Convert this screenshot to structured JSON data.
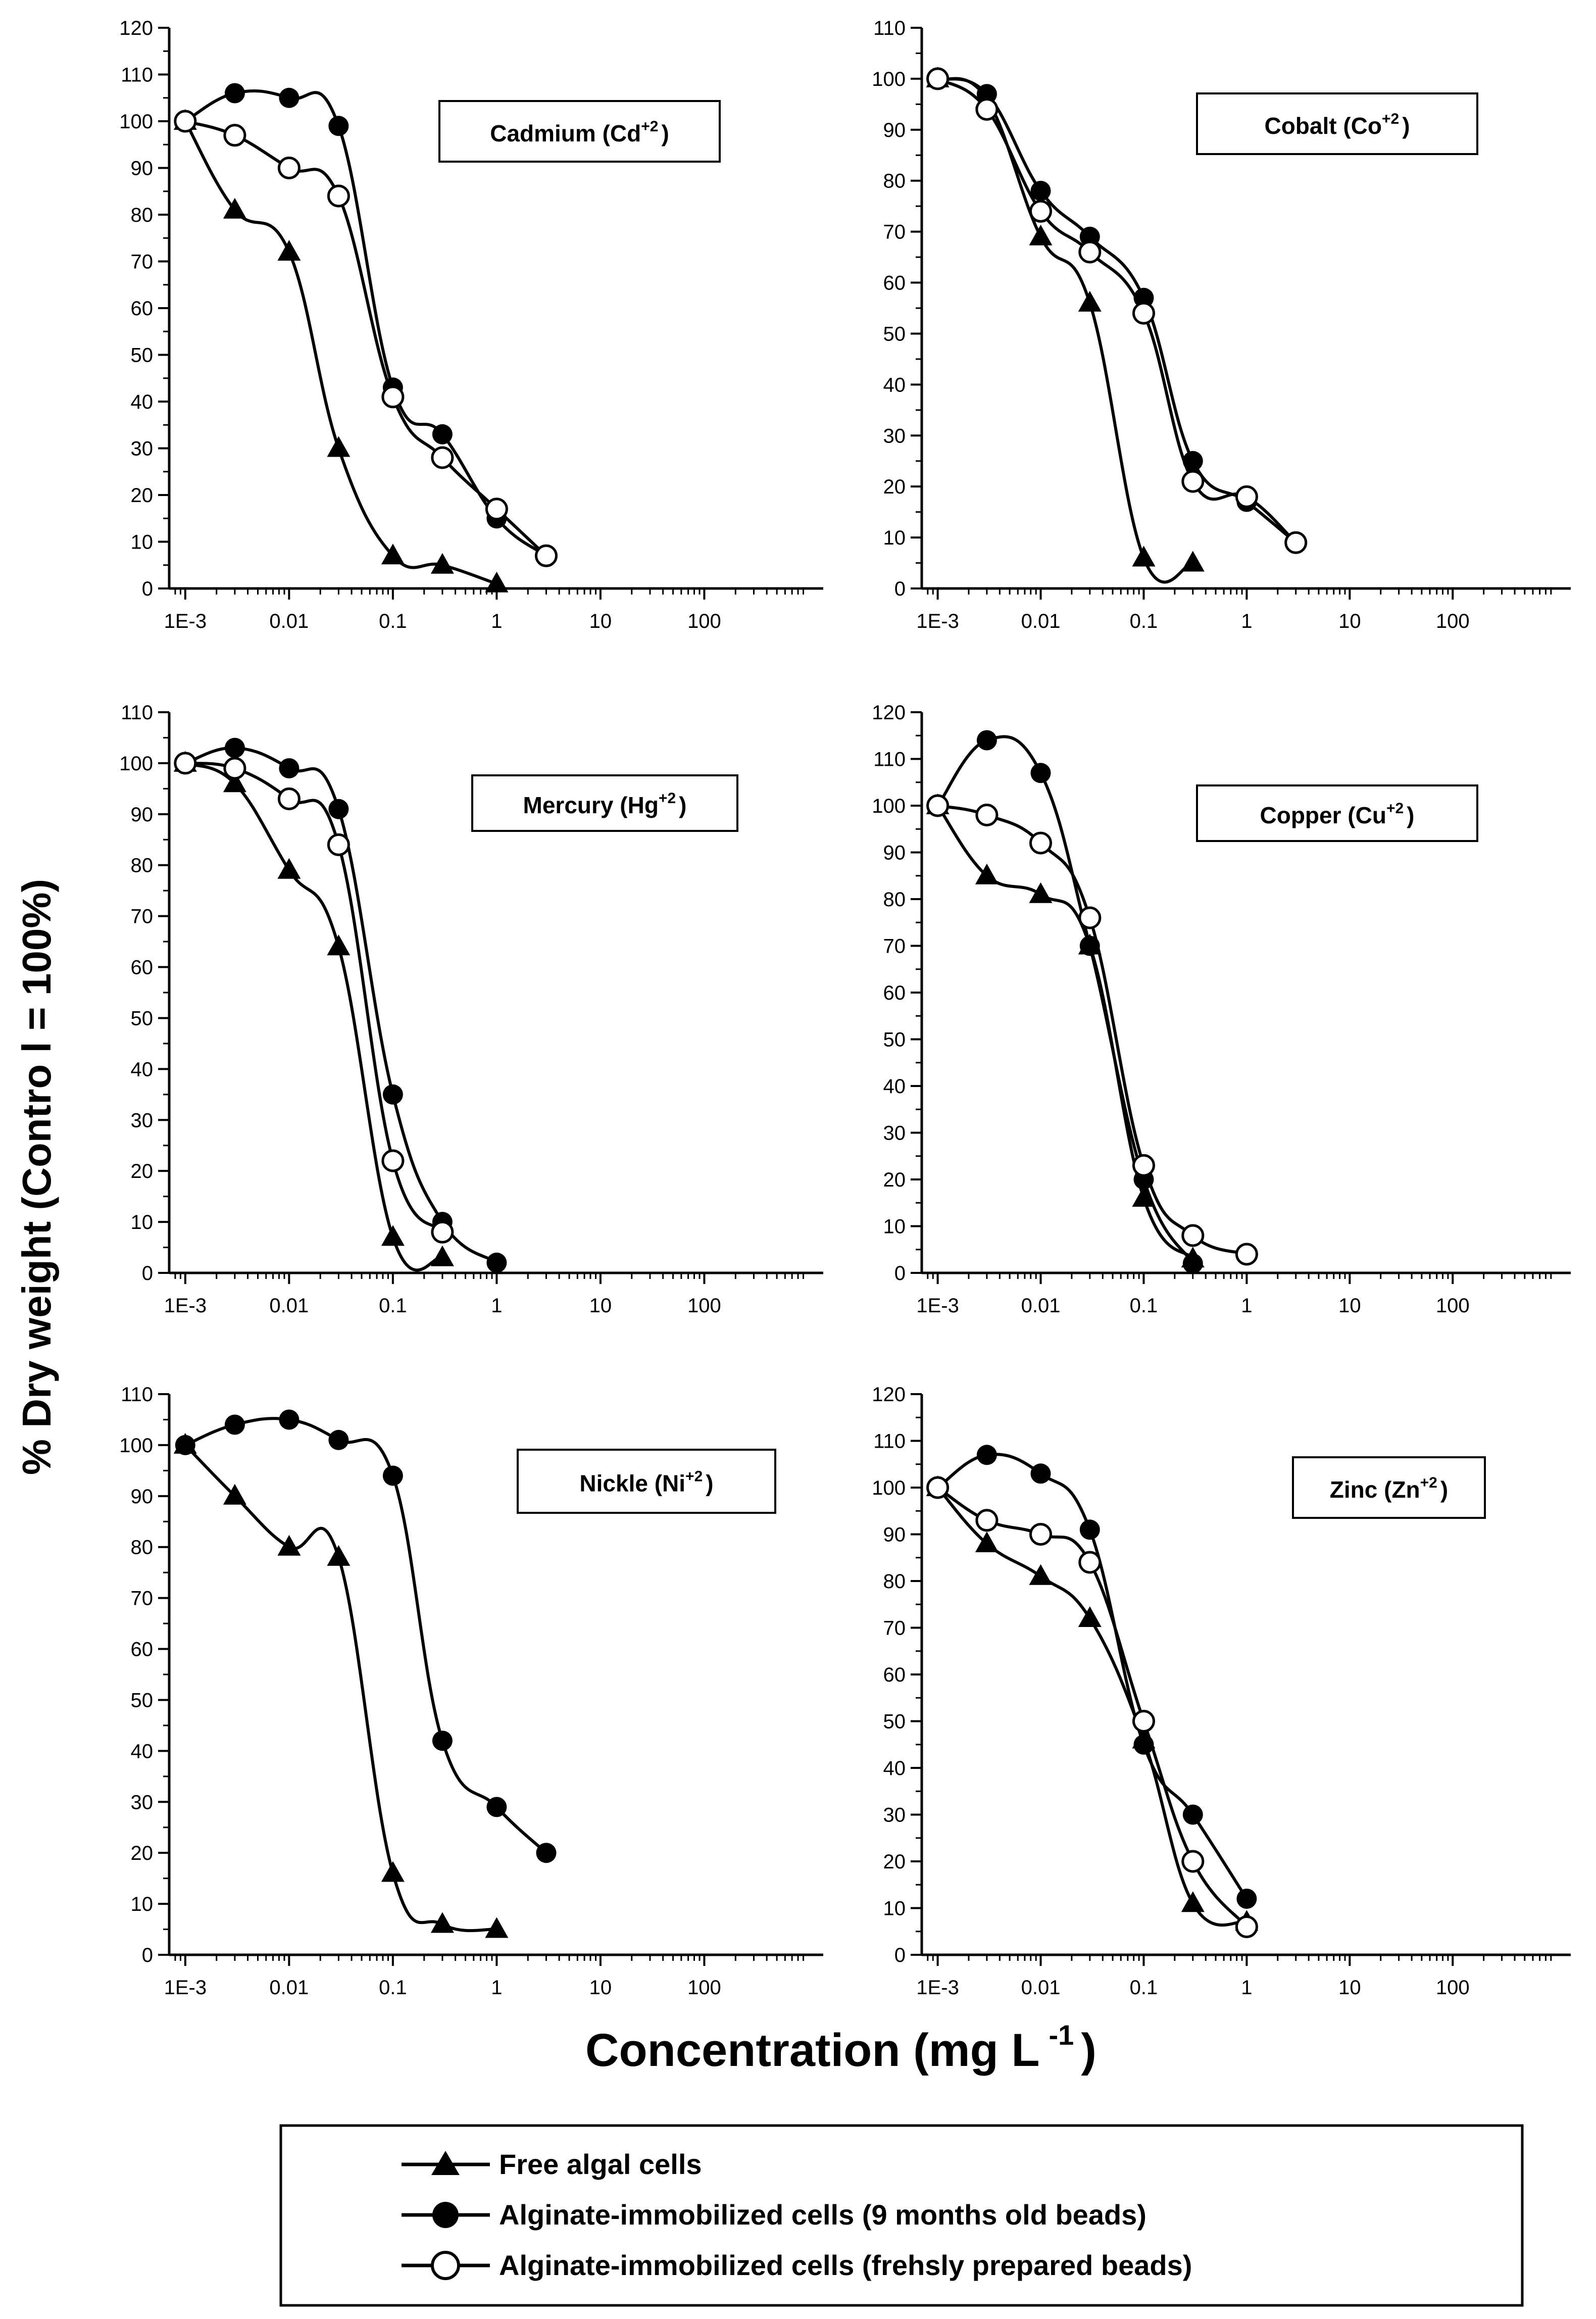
{
  "figure": {
    "ylabel": "% Dry weight (Contro l = 100%)",
    "xlabel_main": "Concentration (mg L",
    "xlabel_sup": "-1",
    "xlabel_end": ")"
  },
  "legend": [
    {
      "name": "Free algal cells",
      "marker": "filled-triangle"
    },
    {
      "name": "Alginate-immobilized cells (9 months old beads)",
      "marker": "filled-circle"
    },
    {
      "name": "Alginate-immobilized cells (frehsly prepared beads)",
      "marker": "open-circle"
    }
  ],
  "chart_data": [
    {
      "type": "line",
      "title": "Cadmium (Cd",
      "title_sup": "+2",
      "title_end": ")",
      "xscale": "log",
      "xlim": [
        0.0007,
        1400
      ],
      "xticks": [
        0.001,
        0.01,
        0.1,
        1,
        10,
        100
      ],
      "xtick_labels": [
        "1E-3",
        "0.01",
        "0.1",
        "1",
        "10",
        "100"
      ],
      "ylim": [
        0,
        120
      ],
      "yticks": [
        0,
        10,
        20,
        30,
        40,
        50,
        60,
        70,
        80,
        90,
        100,
        110,
        120
      ],
      "series": [
        {
          "name": "Free algal cells",
          "x": [
            0.001,
            0.003,
            0.01,
            0.03,
            0.1,
            0.3,
            1
          ],
          "y": [
            100,
            81,
            72,
            30,
            7,
            5,
            1
          ]
        },
        {
          "name": "Alginate-immobilized cells (9 months old beads)",
          "x": [
            0.001,
            0.003,
            0.01,
            0.03,
            0.1,
            0.3,
            1,
            3
          ],
          "y": [
            100,
            106,
            105,
            99,
            43,
            33,
            15,
            7
          ]
        },
        {
          "name": "Alginate-immobilized cells (frehsly prepared beads)",
          "x": [
            0.001,
            0.003,
            0.01,
            0.03,
            0.1,
            0.3,
            1,
            3
          ],
          "y": [
            100,
            97,
            90,
            84,
            41,
            28,
            17,
            7
          ]
        }
      ]
    },
    {
      "type": "line",
      "title": "Cobalt (Co",
      "title_sup": "+2",
      "title_end": ")",
      "xscale": "log",
      "xlim": [
        0.0007,
        1400
      ],
      "xticks": [
        0.001,
        0.01,
        0.1,
        1,
        10,
        100
      ],
      "xtick_labels": [
        "1E-3",
        "0.01",
        "0.1",
        "1",
        "10",
        "100"
      ],
      "ylim": [
        0,
        110
      ],
      "yticks": [
        0,
        10,
        20,
        30,
        40,
        50,
        60,
        70,
        80,
        90,
        100,
        110
      ],
      "series": [
        {
          "name": "Free algal cells",
          "x": [
            0.001,
            0.003,
            0.01,
            0.03,
            0.1,
            0.3
          ],
          "y": [
            100,
            96,
            69,
            56,
            6,
            5
          ]
        },
        {
          "name": "Alginate-immobilized cells (9 months old beads)",
          "x": [
            0.001,
            0.003,
            0.01,
            0.03,
            0.1,
            0.3,
            1,
            3
          ],
          "y": [
            100,
            97,
            78,
            69,
            57,
            25,
            17,
            9
          ]
        },
        {
          "name": "Alginate-immobilized cells (frehsly prepared beads)",
          "x": [
            0.001,
            0.003,
            0.01,
            0.03,
            0.1,
            0.3,
            1,
            3
          ],
          "y": [
            100,
            94,
            74,
            66,
            54,
            21,
            18,
            9
          ]
        }
      ]
    },
    {
      "type": "line",
      "title": "Mercury (Hg",
      "title_sup": "+2",
      "title_end": ")",
      "xscale": "log",
      "xlim": [
        0.0007,
        1400
      ],
      "xticks": [
        0.001,
        0.01,
        0.1,
        1,
        10,
        100
      ],
      "xtick_labels": [
        "1E-3",
        "0.01",
        "0.1",
        "1",
        "10",
        "100"
      ],
      "ylim": [
        0,
        110
      ],
      "yticks": [
        0,
        10,
        20,
        30,
        40,
        50,
        60,
        70,
        80,
        90,
        100,
        110
      ],
      "series": [
        {
          "name": "Free algal cells",
          "x": [
            0.001,
            0.003,
            0.01,
            0.03,
            0.1,
            0.3
          ],
          "y": [
            100,
            96,
            79,
            64,
            7,
            3
          ]
        },
        {
          "name": "Alginate-immobilized cells (9 months old beads)",
          "x": [
            0.001,
            0.003,
            0.01,
            0.03,
            0.1,
            0.3,
            1
          ],
          "y": [
            100,
            103,
            99,
            91,
            35,
            10,
            2
          ]
        },
        {
          "name": "Alginate-immobilized cells (frehsly prepared beads)",
          "x": [
            0.001,
            0.003,
            0.01,
            0.03,
            0.1,
            0.3
          ],
          "y": [
            100,
            99,
            93,
            84,
            22,
            8
          ]
        }
      ]
    },
    {
      "type": "line",
      "title": "Copper (Cu",
      "title_sup": "+2",
      "title_end": ")",
      "xscale": "log",
      "xlim": [
        0.0007,
        1400
      ],
      "xticks": [
        0.001,
        0.01,
        0.1,
        1,
        10,
        100
      ],
      "xtick_labels": [
        "1E-3",
        "0.01",
        "0.1",
        "1",
        "10",
        "100"
      ],
      "ylim": [
        0,
        120
      ],
      "yticks": [
        0,
        10,
        20,
        30,
        40,
        50,
        60,
        70,
        80,
        90,
        100,
        110,
        120
      ],
      "series": [
        {
          "name": "Free algal cells",
          "x": [
            0.001,
            0.003,
            0.01,
            0.03,
            0.1,
            0.3
          ],
          "y": [
            100,
            85,
            81,
            70,
            16,
            3
          ]
        },
        {
          "name": "Alginate-immobilized cells (9 months old beads)",
          "x": [
            0.001,
            0.003,
            0.01,
            0.03,
            0.1,
            0.3
          ],
          "y": [
            100,
            114,
            107,
            70,
            20,
            2
          ]
        },
        {
          "name": "Alginate-immobilized cells (frehsly prepared beads)",
          "x": [
            0.001,
            0.003,
            0.01,
            0.03,
            0.1,
            0.3,
            1
          ],
          "y": [
            100,
            98,
            92,
            76,
            23,
            8,
            4
          ]
        }
      ]
    },
    {
      "type": "line",
      "title": "Nickle (Ni",
      "title_sup": "+2",
      "title_end": ")",
      "xscale": "log",
      "xlim": [
        0.0007,
        1400
      ],
      "xticks": [
        0.001,
        0.01,
        0.1,
        1,
        10,
        100
      ],
      "xtick_labels": [
        "1E-3",
        "0.01",
        "0.1",
        "1",
        "10",
        "100"
      ],
      "ylim": [
        0,
        110
      ],
      "yticks": [
        0,
        10,
        20,
        30,
        40,
        50,
        60,
        70,
        80,
        90,
        100,
        110
      ],
      "series": [
        {
          "name": "Free algal cells",
          "x": [
            0.001,
            0.003,
            0.01,
            0.03,
            0.1,
            0.3,
            1
          ],
          "y": [
            100,
            90,
            80,
            78,
            16,
            6,
            5
          ]
        },
        {
          "name": "Alginate-immobilized cells (9 months old beads)",
          "x": [
            0.001,
            0.003,
            0.01,
            0.03,
            0.1,
            0.3,
            1,
            3
          ],
          "y": [
            100,
            104,
            105,
            101,
            94,
            42,
            29,
            20
          ]
        }
      ]
    },
    {
      "type": "line",
      "title": "Zinc (Zn",
      "title_sup": "+2",
      "title_end": ")",
      "xscale": "log",
      "xlim": [
        0.0007,
        1400
      ],
      "xticks": [
        0.001,
        0.01,
        0.1,
        1,
        10,
        100
      ],
      "xtick_labels": [
        "1E-3",
        "0.01",
        "0.1",
        "1",
        "10",
        "100"
      ],
      "ylim": [
        0,
        120
      ],
      "yticks": [
        0,
        10,
        20,
        30,
        40,
        50,
        60,
        70,
        80,
        90,
        100,
        110,
        120
      ],
      "series": [
        {
          "name": "Free algal cells",
          "x": [
            0.001,
            0.003,
            0.01,
            0.03,
            0.1,
            0.3,
            1
          ],
          "y": [
            100,
            88,
            81,
            72,
            46,
            11,
            7
          ]
        },
        {
          "name": "Alginate-immobilized cells (9 months old beads)",
          "x": [
            0.001,
            0.003,
            0.01,
            0.03,
            0.1,
            0.3,
            1
          ],
          "y": [
            100,
            107,
            103,
            91,
            45,
            30,
            12
          ]
        },
        {
          "name": "Alginate-immobilized cells (frehsly prepared beads)",
          "x": [
            0.001,
            0.003,
            0.01,
            0.03,
            0.1,
            0.3,
            1
          ],
          "y": [
            100,
            93,
            90,
            84,
            50,
            20,
            6
          ]
        }
      ]
    }
  ]
}
